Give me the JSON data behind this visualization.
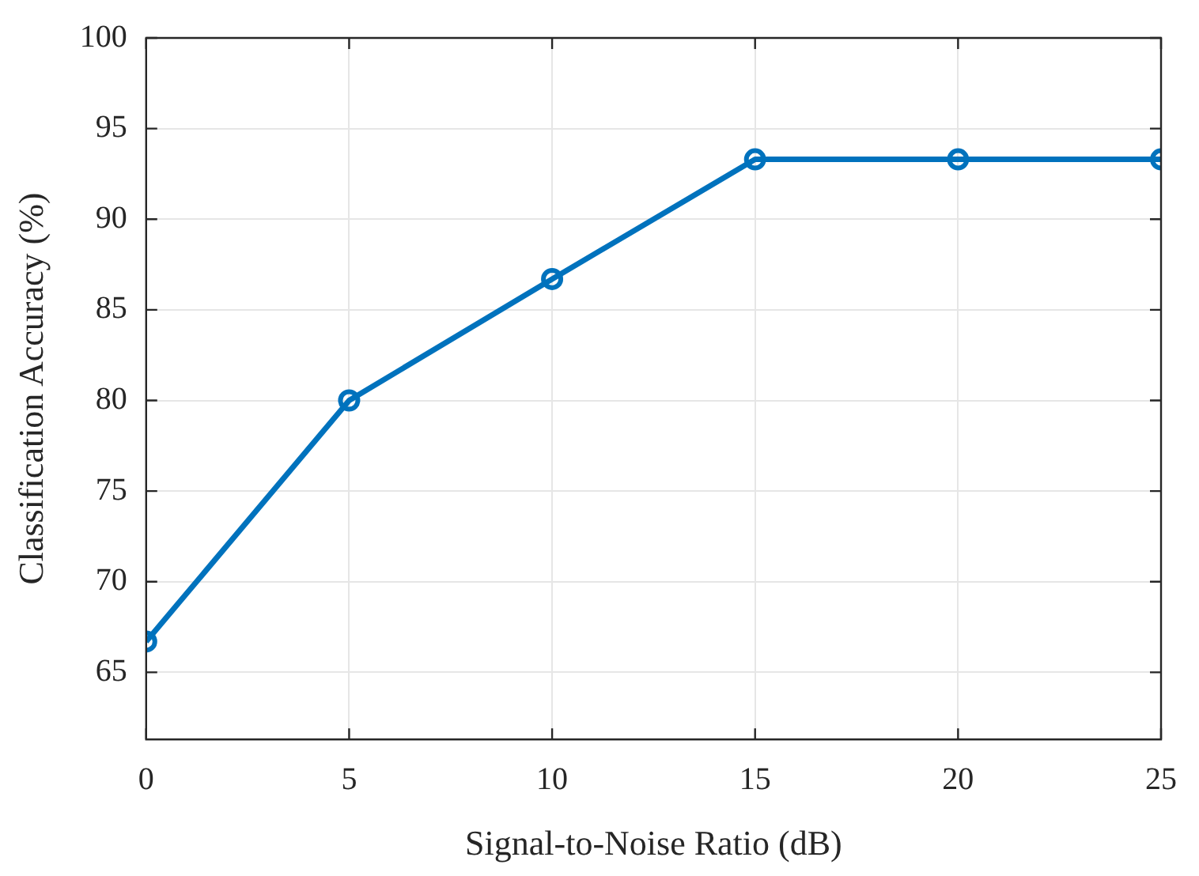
{
  "chart_data": {
    "type": "line",
    "xlabel": "Signal-to-Noise Ratio (dB)",
    "ylabel": "Classification Accuracy (%)",
    "x": [
      0,
      5,
      10,
      15,
      20,
      25
    ],
    "series": [
      {
        "color": "#0072bd",
        "values": [
          66.7,
          80,
          86.7,
          93.3,
          93.3,
          93.3
        ]
      }
    ],
    "xlim": [
      0,
      25
    ],
    "xticks": [
      0,
      5,
      10,
      15,
      20,
      25
    ],
    "ylim": [
      61.3,
      100
    ],
    "yticks": [
      65,
      70,
      75,
      80,
      85,
      90,
      95,
      100
    ],
    "grid": true,
    "marker": "circle",
    "line_style": "solid",
    "legend": false
  }
}
